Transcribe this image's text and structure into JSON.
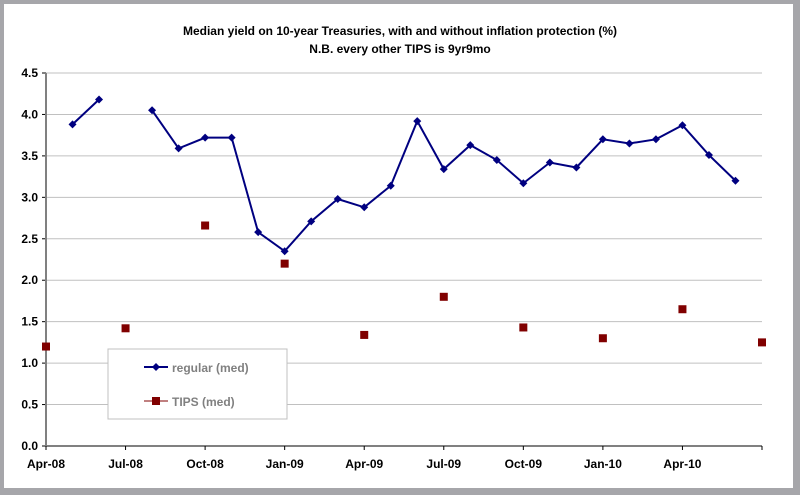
{
  "chart_data": {
    "type": "line",
    "title": "Median yield on 10-year Treasuries, with and without inflation protection (%)",
    "subtitle": "N.B. every other TIPS is 9yr9mo",
    "xlabel": "",
    "ylabel": "",
    "ylim": [
      0,
      4.5
    ],
    "yticks": [
      "0.0",
      "0.5",
      "1.0",
      "1.5",
      "2.0",
      "2.5",
      "3.0",
      "3.5",
      "4.0",
      "4.5"
    ],
    "x": [
      "Apr-08",
      "May-08",
      "Jun-08",
      "Jul-08",
      "Aug-08",
      "Sep-08",
      "Oct-08",
      "Nov-08",
      "Dec-08",
      "Jan-09",
      "Feb-09",
      "Mar-09",
      "Apr-09",
      "May-09",
      "Jun-09",
      "Jul-09",
      "Aug-09",
      "Sep-09",
      "Oct-09",
      "Nov-09",
      "Dec-09",
      "Jan-10",
      "Feb-10",
      "Mar-10",
      "Apr-10",
      "May-10",
      "Jun-10",
      "Jul-10"
    ],
    "xticks": [
      "Apr-08",
      "Jul-08",
      "Oct-08",
      "Jan-09",
      "Apr-09",
      "Jul-09",
      "Oct-09",
      "Jan-10",
      "Apr-10"
    ],
    "grid": true,
    "legend_position": "bottom-left",
    "series": [
      {
        "name": "regular (med)",
        "color": "#000080",
        "marker": "diamond",
        "line": true,
        "values": [
          null,
          3.88,
          4.18,
          null,
          4.05,
          3.59,
          3.72,
          3.72,
          2.58,
          2.35,
          2.71,
          2.98,
          2.88,
          3.14,
          3.92,
          3.34,
          3.63,
          3.45,
          3.17,
          3.42,
          3.36,
          3.7,
          3.65,
          3.7,
          3.87,
          3.51,
          3.2,
          null
        ]
      },
      {
        "name": "TIPS (med)",
        "color": "#800000",
        "marker": "square",
        "line": false,
        "values": [
          1.2,
          null,
          null,
          1.42,
          null,
          null,
          2.66,
          null,
          null,
          2.2,
          null,
          null,
          1.34,
          null,
          null,
          1.8,
          null,
          null,
          1.43,
          null,
          null,
          1.3,
          null,
          null,
          1.65,
          null,
          null,
          1.25
        ]
      }
    ]
  }
}
